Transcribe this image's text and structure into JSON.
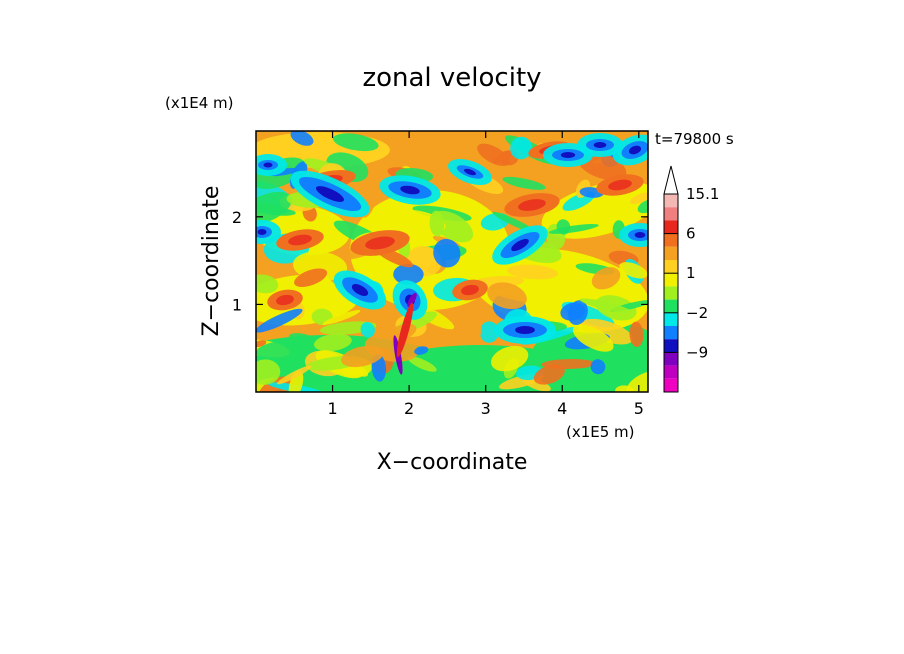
{
  "chart_data": {
    "type": "heatmap",
    "title": "zonal velocity",
    "xlabel": "X−coordinate",
    "ylabel": "Z−coordinate",
    "x_unit": "(x1E5 m)",
    "y_unit": "(x1E4 m)",
    "time_label": "t=79800 s",
    "xlim": [
      0,
      5.12
    ],
    "ylim": [
      0,
      2.98
    ],
    "x_ticks": [
      "1",
      "2",
      "3",
      "4",
      "5"
    ],
    "y_ticks": [
      "1",
      "2"
    ],
    "colorbar": {
      "levels_visible": [
        "15.1",
        "6",
        "1",
        "−2",
        "−9"
      ],
      "bands": [
        {
          "upper": "overflow",
          "color": "#ffffff"
        },
        {
          "upper": 15.1,
          "color": "#f4b8b4"
        },
        {
          "upper": 12,
          "color": "#f08080"
        },
        {
          "upper": 9,
          "color": "#e8281e"
        },
        {
          "upper": 6,
          "color": "#f07020"
        },
        {
          "upper": 3,
          "color": "#f4a020"
        },
        {
          "upper": 2,
          "color": "#ffd020"
        },
        {
          "upper": 1,
          "color": "#f0f000"
        },
        {
          "upper": 0,
          "color": "#a0f020"
        },
        {
          "upper": -1,
          "color": "#20e060"
        },
        {
          "upper": -2,
          "color": "#00e8e8"
        },
        {
          "upper": -4,
          "color": "#1080ff"
        },
        {
          "upper": -6,
          "color": "#1010c0"
        },
        {
          "upper": -9,
          "color": "#8000c0"
        },
        {
          "upper": -12,
          "color": "#c000c0"
        },
        {
          "upper": -15,
          "color": "#f000c0"
        }
      ]
    },
    "field_note": "zonal velocity field is a continuous contour field; values range approx. from -15 to 15"
  }
}
